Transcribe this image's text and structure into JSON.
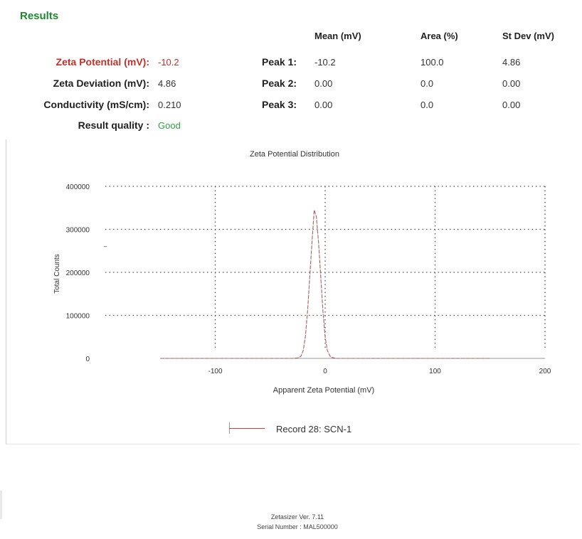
{
  "results_title": "Results",
  "summary": [
    {
      "label": "Zeta Potential (mV):",
      "value": "-10.2"
    },
    {
      "label": "Zeta Deviation (mV):",
      "value": "4.86"
    },
    {
      "label": "Conductivity (mS/cm):",
      "value": "0.210"
    },
    {
      "label": "Result quality :",
      "value": "Good"
    }
  ],
  "peak_table": {
    "headers": [
      "Mean (mV)",
      "Area (%)",
      "St Dev (mV)"
    ],
    "rows": [
      {
        "label": "Peak 1:",
        "mean": "-10.2",
        "area": "100.0",
        "stdev": "4.86"
      },
      {
        "label": "Peak 2:",
        "mean": "0.00",
        "area": "0.0",
        "stdev": "0.00"
      },
      {
        "label": "Peak 3:",
        "mean": "0.00",
        "area": "0.0",
        "stdev": "0.00"
      }
    ]
  },
  "colors": {
    "title_green": "#1e8a2e",
    "highlight_red": "#c0302a",
    "quality_green": "#2fa23f",
    "series_red": "#c04040"
  },
  "chart_data": {
    "type": "line",
    "title": "Zeta Potential Distribution",
    "xlabel": "Apparent Zeta Potential (mV)",
    "ylabel": "Total Counts",
    "xlim": [
      -200,
      200
    ],
    "ylim": [
      0,
      400000
    ],
    "x_ticks": [
      "-100",
      "0",
      "100",
      "200"
    ],
    "x_tick_values": [
      -100,
      0,
      100,
      200
    ],
    "y_ticks": [
      "0",
      "100000",
      "200000",
      "300000",
      "400000"
    ],
    "y_tick_values": [
      0,
      100000,
      200000,
      300000,
      400000
    ],
    "grid": true,
    "legend_position": "bottom",
    "series": [
      {
        "name": "Record 28: SCN-1",
        "x": [
          -150,
          -40,
          -30,
          -25,
          -22,
          -20,
          -18,
          -16,
          -14,
          -12,
          -10,
          -8,
          -6,
          -4,
          -2,
          0,
          2,
          5,
          10,
          150
        ],
        "y": [
          0,
          0,
          0,
          1000,
          5000,
          18000,
          50000,
          110000,
          190000,
          270000,
          345000,
          330000,
          270000,
          190000,
          110000,
          50000,
          18000,
          3000,
          0,
          0
        ]
      }
    ]
  },
  "footer": {
    "line1": "Zetasizer Ver. 7.11",
    "line2": "Serial Number : MAL500000"
  }
}
